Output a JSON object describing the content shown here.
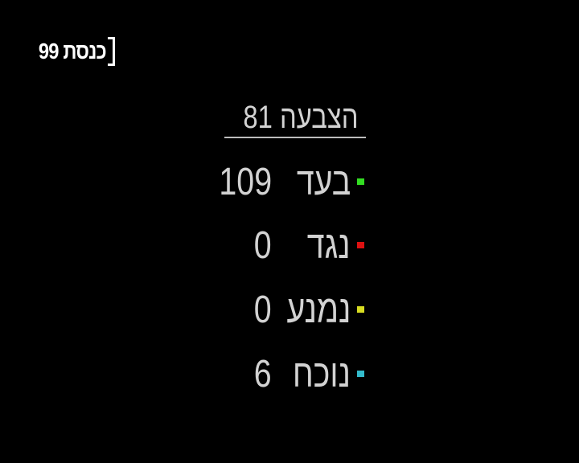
{
  "channel": {
    "logo_text": "כנסת 99"
  },
  "vote": {
    "title": "הצבעה 81",
    "rows": [
      {
        "label": "בעד",
        "value": "109",
        "color": "#33dd22"
      },
      {
        "label": "נגד",
        "value": "0",
        "color": "#dd1111"
      },
      {
        "label": "נמנע",
        "value": "0",
        "color": "#d8dd22"
      },
      {
        "label": "נוכח",
        "value": "6",
        "color": "#33bbcc"
      }
    ]
  }
}
